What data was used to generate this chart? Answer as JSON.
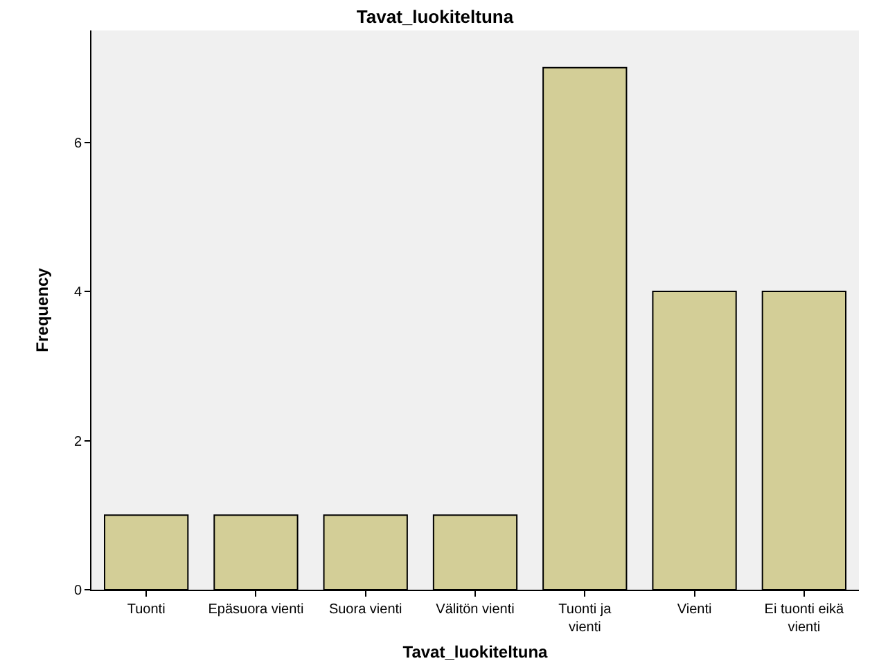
{
  "chart_data": {
    "type": "bar",
    "title": "Tavat_luokiteltuna",
    "xlabel": "Tavat_luokiteltuna",
    "ylabel": "Frequency",
    "categories": [
      "Tuonti",
      "Epäsuora vienti",
      "Suora vienti",
      "Välitön vienti",
      "Tuonti ja vienti",
      "Vienti",
      "Ei tuonti eikä vienti"
    ],
    "values": [
      1,
      1,
      1,
      1,
      7,
      4,
      4
    ],
    "color": "#d3ce97",
    "ylim": [
      0,
      7.5
    ],
    "yticks": [
      0,
      2,
      4,
      6
    ]
  }
}
